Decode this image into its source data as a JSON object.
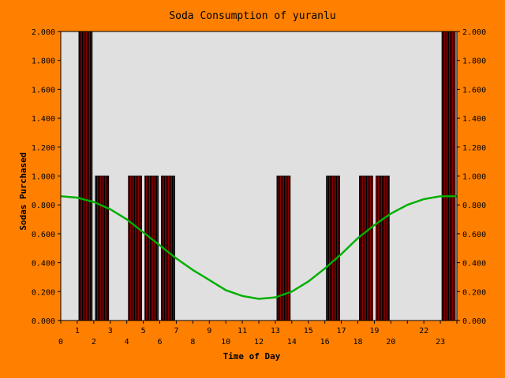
{
  "colors": {
    "background": "#ff8000",
    "plot_area": "#e0e0e0",
    "bar_fill": "#8b0000",
    "bar_stripe": "#000000",
    "curve": "#00b000",
    "text": "#000000"
  },
  "chart_data": {
    "type": "bar",
    "title": "Soda Consumption of yuranlu",
    "xlabel": "Time of Day",
    "ylabel": "Sodas Purchased",
    "ylim": [
      0,
      2
    ],
    "xlim": [
      0,
      24
    ],
    "y_ticks": [
      "0.000",
      "0.200",
      "0.400",
      "0.600",
      "0.800",
      "1.000",
      "1.200",
      "1.400",
      "1.600",
      "1.800",
      "2.000"
    ],
    "x_ticks": [
      {
        "label": "0",
        "x": 0
      },
      {
        "label": "1",
        "x": 1
      },
      {
        "label": "2",
        "x": 2
      },
      {
        "label": "3",
        "x": 3
      },
      {
        "label": "4",
        "x": 4
      },
      {
        "label": "5",
        "x": 5
      },
      {
        "label": "6",
        "x": 6
      },
      {
        "label": "7",
        "x": 7
      },
      {
        "label": "8",
        "x": 8
      },
      {
        "label": "9",
        "x": 9
      },
      {
        "label": "10",
        "x": 10
      },
      {
        "label": "11",
        "x": 11
      },
      {
        "label": "12",
        "x": 12
      },
      {
        "label": "13",
        "x": 13
      },
      {
        "label": "14",
        "x": 14
      },
      {
        "label": "15",
        "x": 15
      },
      {
        "label": "16",
        "x": 16
      },
      {
        "label": "17",
        "x": 17
      },
      {
        "label": "18",
        "x": 18
      },
      {
        "label": "19",
        "x": 19
      },
      {
        "label": "20",
        "x": 20
      },
      {
        "label": "22",
        "x": 22
      },
      {
        "label": "23",
        "x": 23
      }
    ],
    "bars": [
      {
        "x": 1.5,
        "value": 2
      },
      {
        "x": 2.5,
        "value": 1
      },
      {
        "x": 4.5,
        "value": 1
      },
      {
        "x": 5.5,
        "value": 1
      },
      {
        "x": 6.5,
        "value": 1
      },
      {
        "x": 13.5,
        "value": 1
      },
      {
        "x": 16.5,
        "value": 1
      },
      {
        "x": 18.5,
        "value": 1
      },
      {
        "x": 19.5,
        "value": 1
      },
      {
        "x": 23.5,
        "value": 2
      }
    ],
    "trend": {
      "x": [
        0,
        1,
        2,
        3,
        4,
        5,
        6,
        7,
        8,
        9,
        10,
        11,
        12,
        13,
        14,
        15,
        16,
        17,
        18,
        19,
        20,
        21,
        22,
        23,
        24
      ],
      "y": [
        0.86,
        0.85,
        0.82,
        0.77,
        0.7,
        0.61,
        0.52,
        0.43,
        0.35,
        0.28,
        0.21,
        0.17,
        0.15,
        0.16,
        0.2,
        0.27,
        0.36,
        0.46,
        0.57,
        0.66,
        0.74,
        0.8,
        0.84,
        0.86,
        0.86
      ]
    }
  }
}
